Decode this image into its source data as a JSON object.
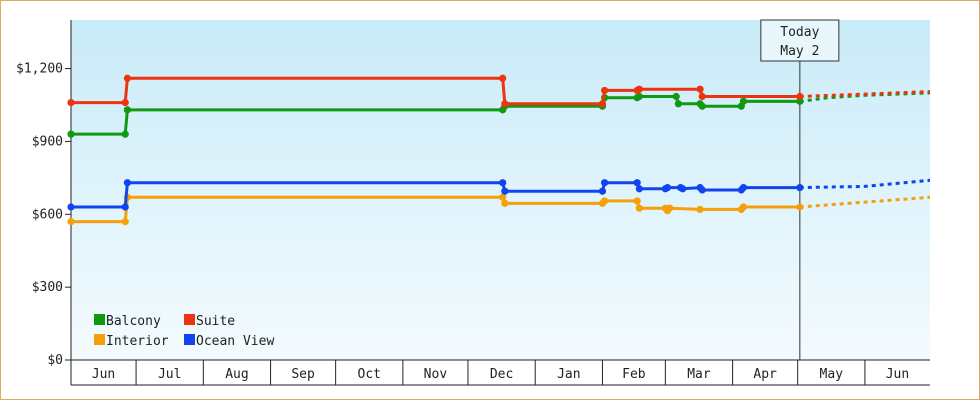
{
  "chart_data": {
    "type": "line",
    "ylim": [
      0,
      1400
    ],
    "y_ticks": [
      {
        "value": 0,
        "label": "$0"
      },
      {
        "value": 300,
        "label": "$300"
      },
      {
        "value": 600,
        "label": "$600"
      },
      {
        "value": 900,
        "label": "$900"
      },
      {
        "value": 1200,
        "label": "$1,200"
      }
    ],
    "x_start": "2015-06-01",
    "x_end": "2016-07-01",
    "x_ticks": [
      {
        "label": "Jun",
        "start": "2015-06-01",
        "end": "2015-07-01"
      },
      {
        "label": "Jul",
        "start": "2015-07-01",
        "end": "2015-08-01"
      },
      {
        "label": "Aug",
        "start": "2015-08-01",
        "end": "2015-09-01"
      },
      {
        "label": "Sep",
        "start": "2015-09-01",
        "end": "2015-10-01"
      },
      {
        "label": "Oct",
        "start": "2015-10-01",
        "end": "2015-11-01"
      },
      {
        "label": "Nov",
        "start": "2015-11-01",
        "end": "2015-12-01"
      },
      {
        "label": "Dec",
        "start": "2015-12-01",
        "end": "2016-01-01"
      },
      {
        "label": "Jan",
        "start": "2016-01-01",
        "end": "2016-02-01"
      },
      {
        "label": "Feb",
        "start": "2016-02-01",
        "end": "2016-03-01"
      },
      {
        "label": "Mar",
        "start": "2016-03-01",
        "end": "2016-04-01"
      },
      {
        "label": "Apr",
        "start": "2016-04-01",
        "end": "2016-05-01"
      },
      {
        "label": "May",
        "start": "2016-05-01",
        "end": "2016-06-01"
      },
      {
        "label": "Jun",
        "start": "2016-06-01",
        "end": "2016-07-01"
      }
    ],
    "today": {
      "line1": "Today",
      "line2": "May 2",
      "date": "2016-05-02"
    },
    "grid": false,
    "legend_position": "bottom-left",
    "series": [
      {
        "name": "Balcony",
        "color": "#119911",
        "points": [
          [
            "2015-06-01",
            930
          ],
          [
            "2015-06-26",
            930
          ],
          [
            "2015-06-27",
            1030
          ],
          [
            "2015-12-17",
            1030
          ],
          [
            "2015-12-18",
            1045
          ],
          [
            "2016-02-01",
            1045
          ],
          [
            "2016-02-02",
            1080
          ],
          [
            "2016-02-17",
            1080
          ],
          [
            "2016-02-18",
            1085
          ],
          [
            "2016-03-06",
            1085
          ],
          [
            "2016-03-07",
            1055
          ],
          [
            "2016-03-17",
            1055
          ],
          [
            "2016-03-18",
            1045
          ],
          [
            "2016-04-05",
            1045
          ],
          [
            "2016-04-06",
            1065
          ],
          [
            "2016-05-02",
            1065
          ]
        ],
        "projection": [
          [
            "2016-05-02",
            1065
          ],
          [
            "2016-05-15",
            1080
          ],
          [
            "2016-06-01",
            1090
          ],
          [
            "2016-07-01",
            1100
          ]
        ]
      },
      {
        "name": "Suite",
        "color": "#ee3311",
        "points": [
          [
            "2015-06-01",
            1060
          ],
          [
            "2015-06-26",
            1060
          ],
          [
            "2015-06-27",
            1160
          ],
          [
            "2015-12-17",
            1160
          ],
          [
            "2015-12-18",
            1055
          ],
          [
            "2016-02-01",
            1055
          ],
          [
            "2016-02-02",
            1110
          ],
          [
            "2016-02-17",
            1110
          ],
          [
            "2016-02-18",
            1115
          ],
          [
            "2016-03-17",
            1115
          ],
          [
            "2016-03-18",
            1085
          ],
          [
            "2016-05-02",
            1085
          ]
        ],
        "projection": [
          [
            "2016-05-02",
            1085
          ],
          [
            "2016-06-01",
            1095
          ],
          [
            "2016-07-01",
            1105
          ]
        ]
      },
      {
        "name": "Interior",
        "color": "#f5a00a",
        "points": [
          [
            "2015-06-01",
            570
          ],
          [
            "2015-06-26",
            570
          ],
          [
            "2015-06-27",
            670
          ],
          [
            "2015-12-17",
            670
          ],
          [
            "2015-12-18",
            645
          ],
          [
            "2016-02-01",
            645
          ],
          [
            "2016-02-02",
            655
          ],
          [
            "2016-02-17",
            655
          ],
          [
            "2016-02-18",
            625
          ],
          [
            "2016-03-01",
            625
          ],
          [
            "2016-03-02",
            615
          ],
          [
            "2016-03-03",
            625
          ],
          [
            "2016-03-17",
            620
          ],
          [
            "2016-04-05",
            620
          ],
          [
            "2016-04-06",
            630
          ],
          [
            "2016-05-02",
            630
          ]
        ],
        "projection": [
          [
            "2016-05-02",
            630
          ],
          [
            "2016-06-01",
            650
          ],
          [
            "2016-07-01",
            670
          ]
        ]
      },
      {
        "name": "Ocean View",
        "color": "#1144ee",
        "points": [
          [
            "2015-06-01",
            630
          ],
          [
            "2015-06-26",
            630
          ],
          [
            "2015-06-27",
            730
          ],
          [
            "2015-12-17",
            730
          ],
          [
            "2015-12-18",
            695
          ],
          [
            "2016-02-01",
            695
          ],
          [
            "2016-02-02",
            730
          ],
          [
            "2016-02-17",
            730
          ],
          [
            "2016-02-18",
            705
          ],
          [
            "2016-03-01",
            705
          ],
          [
            "2016-03-02",
            710
          ],
          [
            "2016-03-08",
            710
          ],
          [
            "2016-03-09",
            705
          ],
          [
            "2016-03-17",
            710
          ],
          [
            "2016-03-18",
            700
          ],
          [
            "2016-04-05",
            700
          ],
          [
            "2016-04-06",
            710
          ],
          [
            "2016-05-02",
            710
          ]
        ],
        "projection": [
          [
            "2016-05-02",
            710
          ],
          [
            "2016-06-01",
            715
          ],
          [
            "2016-07-01",
            740
          ]
        ]
      }
    ]
  }
}
